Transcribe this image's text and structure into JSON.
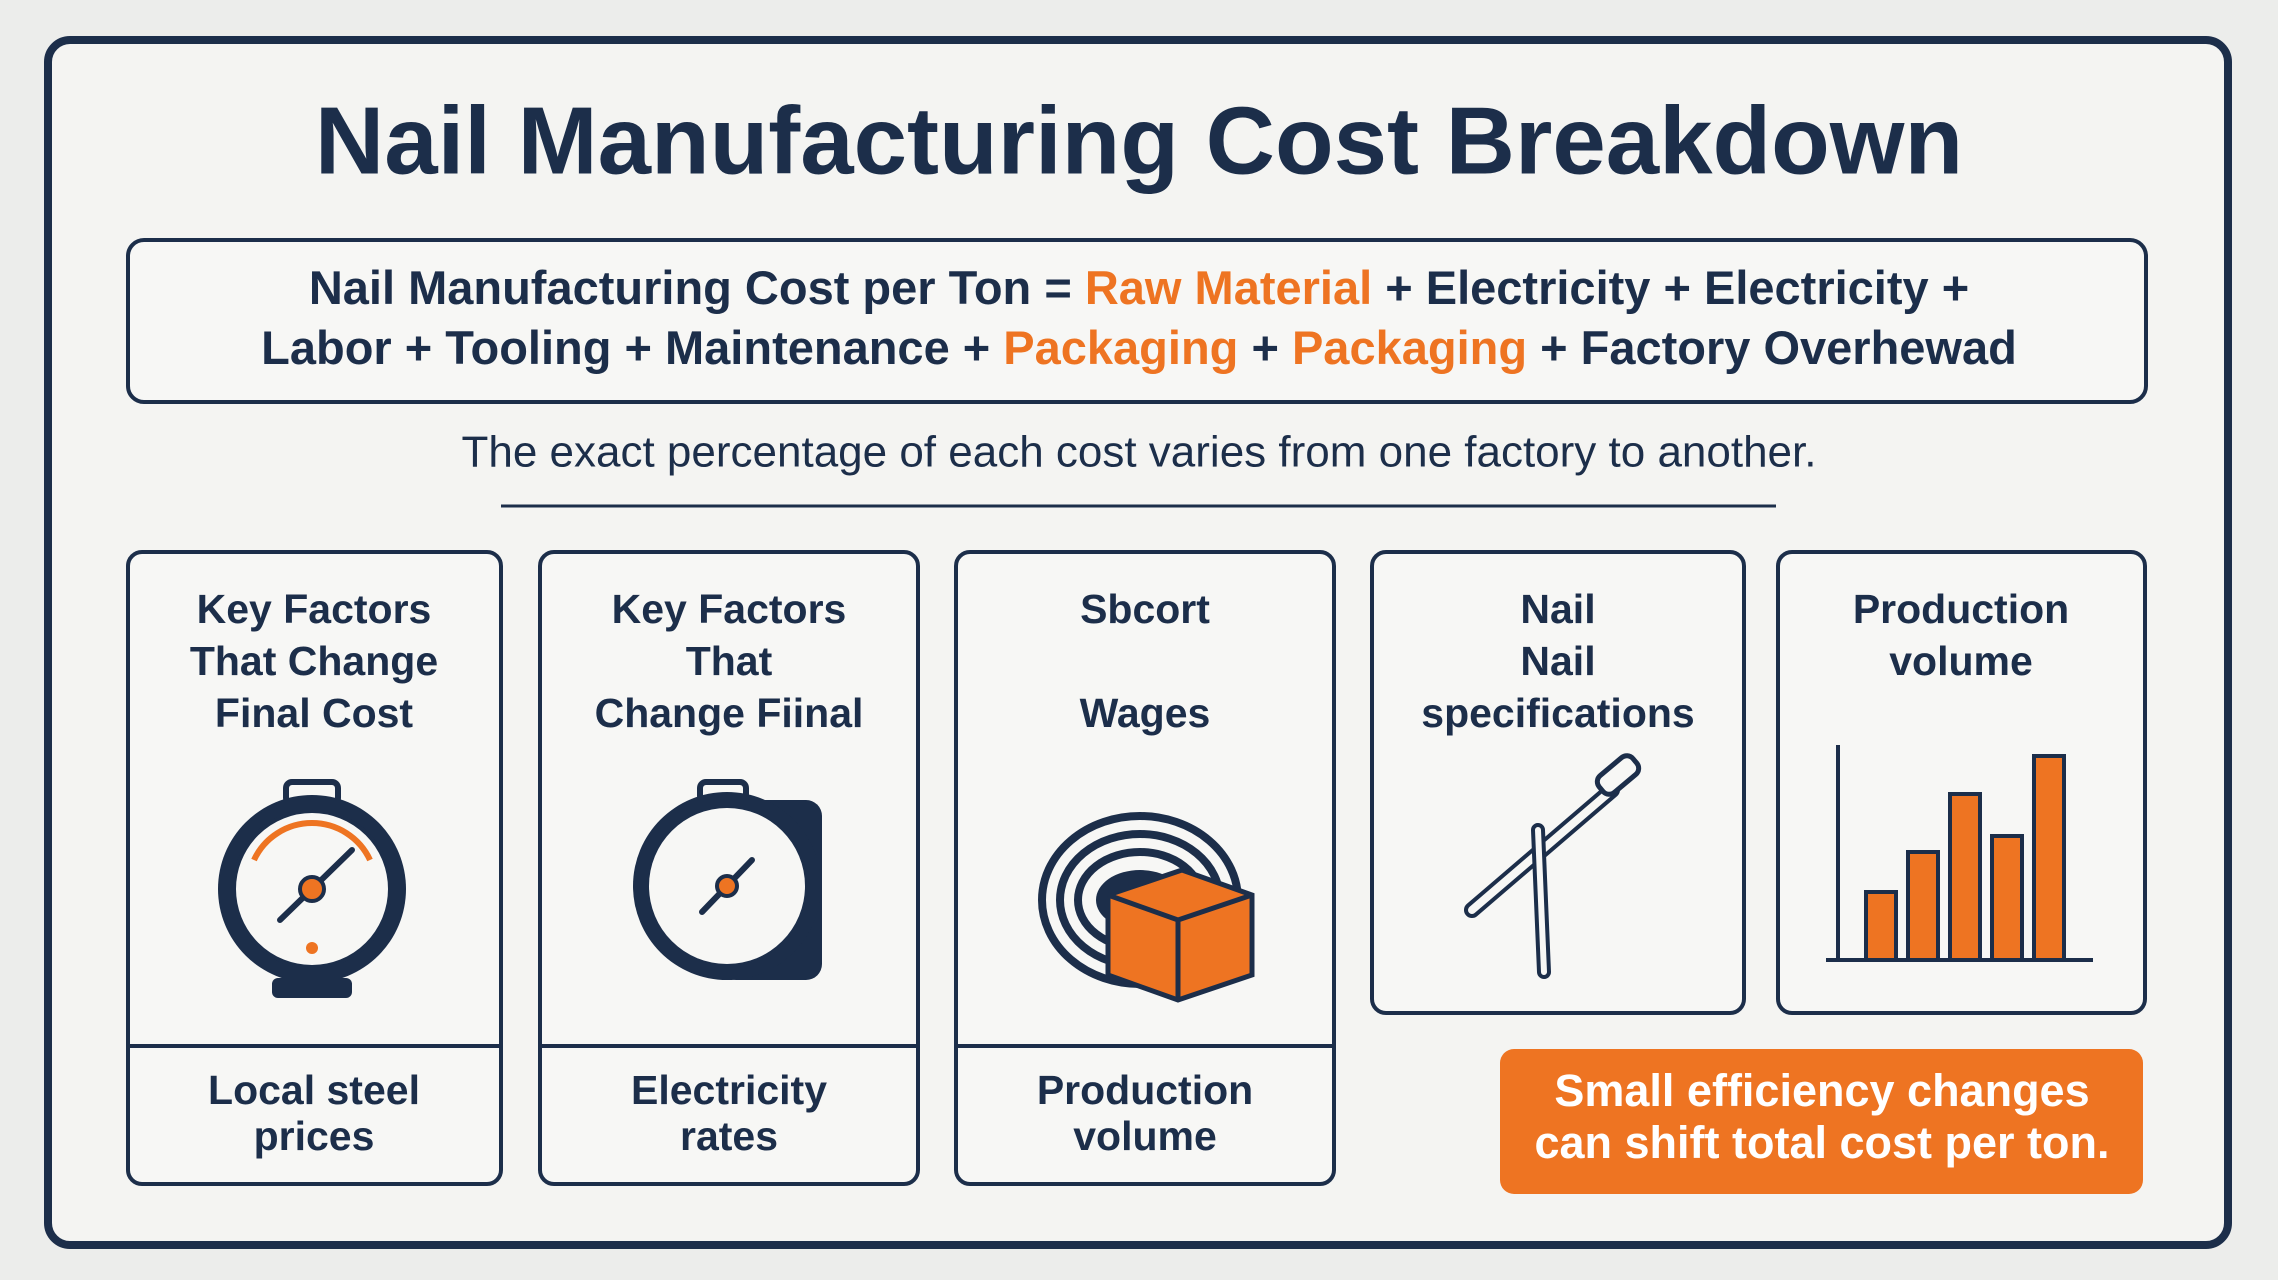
{
  "header": {
    "title": "Nail Manufacturing Cost Breakdown"
  },
  "formula": {
    "lines": [
      [
        {
          "text": "Nail Manufacturing Cost per Ton =",
          "accent": false
        },
        {
          "text": "Raw Material",
          "accent": true
        },
        {
          "text": "+ Electricity + Electricity +",
          "accent": false
        }
      ],
      [
        {
          "text": "Labor + Tooling + Maintenance +",
          "accent": false
        },
        {
          "text": "Packaging",
          "accent": true
        },
        {
          "text": "+",
          "accent": false
        },
        {
          "text": "Packaging",
          "accent": true
        },
        {
          "text": "+ Factory Overhewad",
          "accent": false
        }
      ]
    ]
  },
  "subtitle": "The exact percentage of each cost varies from one factory to another.",
  "cards": [
    {
      "top": [
        "Key Factors",
        "That Change",
        "Final Cost"
      ],
      "bottom": [
        "Local steel",
        "prices"
      ]
    },
    {
      "top": [
        "Key Factors",
        "That",
        "Change Fiinal"
      ],
      "bottom": [
        "Electricity",
        "rates"
      ]
    },
    {
      "top": [
        "Sbcort",
        "Wages"
      ],
      "bottom": [
        "Production",
        "volume"
      ]
    },
    {
      "top": [
        "Nail",
        "Nail",
        "specifications"
      ]
    },
    {
      "top": [
        "Production",
        "volume"
      ]
    }
  ],
  "callout": [
    "Small efficiency changes",
    "can shift total cost per ton."
  ]
}
